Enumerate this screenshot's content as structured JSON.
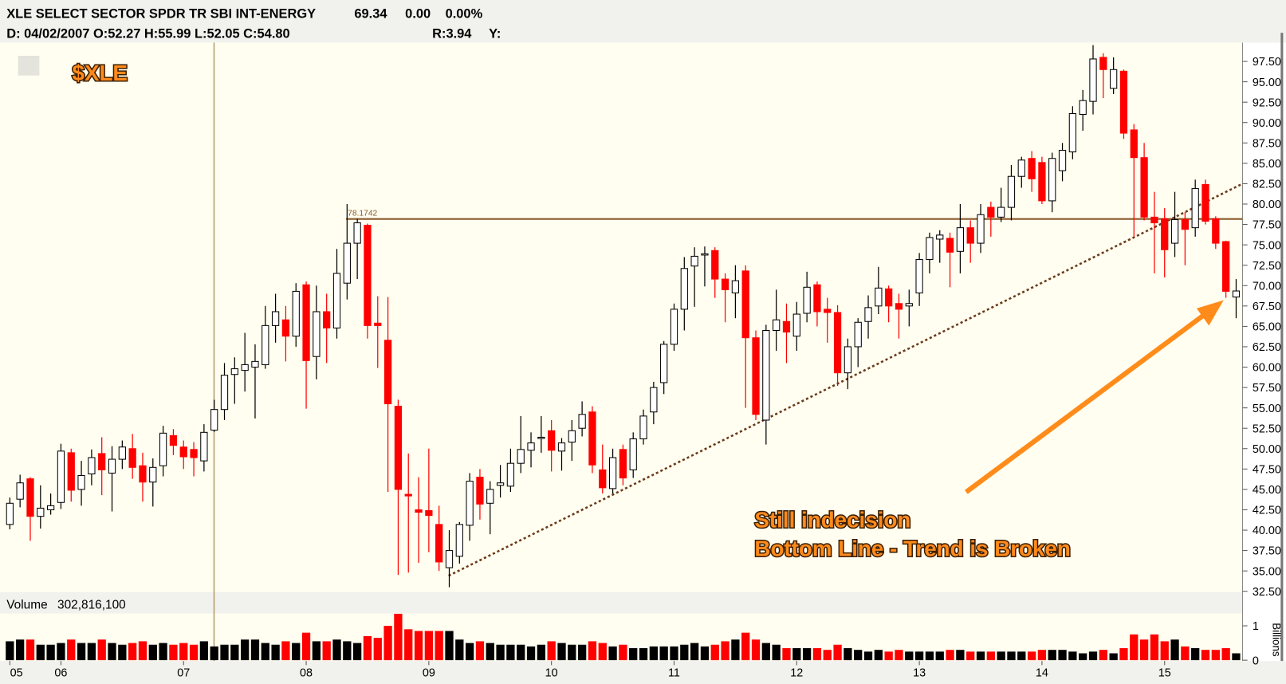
{
  "header": {
    "name": "XLE SELECT SECTOR SPDR TR SBI INT-ENERGY",
    "last": "69.34",
    "change": "0.00",
    "change_pct": "0.00%",
    "readout": "D: 04/02/2007 O:52.27 H:55.99 L:52.05 C:54.80",
    "range": "R:3.94",
    "y": "Y:"
  },
  "annotations": [
    "Still indecision",
    "Bottom Line - Trend is Broken"
  ],
  "chart_data": [
    {
      "type": "candlestick",
      "title": "$XLE",
      "up_color": "#ffffff",
      "down_color": "#ff0000",
      "categories": [
        "05",
        null,
        null,
        null,
        null,
        "06",
        null,
        null,
        null,
        null,
        null,
        null,
        null,
        null,
        null,
        null,
        null,
        "07",
        null,
        null,
        null,
        null,
        null,
        null,
        null,
        null,
        null,
        null,
        null,
        "08",
        null,
        null,
        null,
        null,
        null,
        null,
        null,
        null,
        null,
        null,
        null,
        "09",
        null,
        null,
        null,
        null,
        null,
        null,
        null,
        null,
        null,
        null,
        null,
        "10",
        null,
        null,
        null,
        null,
        null,
        null,
        null,
        null,
        null,
        null,
        null,
        "11",
        null,
        null,
        null,
        null,
        null,
        null,
        null,
        null,
        null,
        null,
        null,
        "12",
        null,
        null,
        null,
        null,
        null,
        null,
        null,
        null,
        null,
        null,
        null,
        "13",
        null,
        null,
        null,
        null,
        null,
        null,
        null,
        null,
        null,
        null,
        null,
        "14",
        null,
        null,
        null,
        null,
        null,
        null,
        null,
        null,
        null,
        null,
        null,
        "15",
        null,
        null,
        null,
        null,
        null,
        null,
        null
      ],
      "open": [
        40.7,
        43.8,
        46.3,
        41.7,
        42.5,
        43.4,
        49.5,
        45.0,
        46.9,
        49.4,
        47.0,
        48.7,
        50.0,
        47.9,
        45.9,
        47.9,
        51.6,
        50.2,
        49.9,
        48.5,
        52.27,
        54.8,
        59.1,
        59.6,
        60.0,
        60.3,
        65.1,
        65.8,
        63.8,
        70.1,
        61.3,
        66.8,
        64.8,
        70.3,
        75.2,
        77.4,
        65.4,
        63.3,
        55.2,
        44.4,
        42.5,
        42.4,
        40.7,
        35.4,
        36.8,
        40.6,
        46.5,
        43.3,
        45.5,
        45.4,
        48.2,
        49.8,
        51.3,
        52.2,
        49.7,
        50.8,
        52.5,
        54.5,
        47.4,
        45.1,
        49.9,
        47.4,
        51.2,
        54.5,
        58.1,
        62.8,
        67.1,
        72.4,
        73.8,
        74.3,
        70.8,
        69.1,
        71.8,
        63.6,
        53.5,
        64.5,
        65.6,
        63.8,
        66.6,
        70.1,
        67.1,
        66.7,
        59.3,
        62.5,
        65.6,
        67.5,
        69.6,
        67.8,
        67.5,
        69.1,
        73.2,
        75.7,
        75.8,
        74.2,
        77.1,
        75.2,
        79.6,
        78.4,
        79.6,
        83.4,
        85.6,
        85.1,
        80.4,
        84.1,
        86.4,
        91.0,
        92.6,
        98.0,
        94.2,
        96.3,
        89.1,
        85.7,
        78.4,
        78.2,
        75.2,
        78.1,
        77.1,
        82.4,
        78.2,
        75.4,
        68.6
      ],
      "high": [
        44.0,
        46.8,
        46.5,
        45.5,
        44.5,
        50.6,
        50.0,
        48.5,
        49.9,
        51.4,
        50.3,
        51.0,
        51.8,
        49.5,
        48.8,
        52.8,
        52.4,
        51.0,
        50.8,
        53.0,
        55.99,
        60.5,
        61.2,
        64.2,
        62.8,
        67.5,
        69.0,
        67.5,
        70.3,
        70.5,
        70.0,
        69.0,
        74.5,
        80.0,
        78.2,
        77.6,
        68.7,
        68.6,
        56.0,
        49.4,
        46.5,
        50.0,
        43.0,
        40.0,
        41.0,
        47.0,
        47.5,
        46.0,
        48.0,
        50.0,
        54.0,
        52.0,
        54.0,
        53.5,
        51.3,
        53.5,
        55.8,
        55.2,
        50.5,
        50.0,
        50.5,
        52.0,
        54.8,
        58.2,
        63.2,
        67.8,
        73.5,
        74.7,
        74.8,
        74.7,
        71.5,
        72.5,
        72.5,
        64.5,
        65.2,
        69.5,
        67.8,
        68.0,
        71.7,
        70.5,
        68.5,
        67.6,
        63.5,
        66.0,
        68.8,
        72.3,
        70.0,
        69.0,
        69.5,
        74.0,
        76.5,
        76.8,
        76.5,
        80.0,
        78.0,
        80.0,
        80.3,
        82.0,
        84.8,
        85.8,
        86.5,
        85.8,
        86.3,
        87.5,
        92.0,
        94.0,
        99.5,
        98.5,
        98.0,
        96.5,
        89.8,
        87.5,
        81.5,
        79.5,
        81.5,
        79.0,
        83.0,
        83.0,
        78.5,
        75.5,
        70.8
      ],
      "low": [
        40.1,
        42.8,
        38.7,
        40.2,
        41.9,
        42.6,
        43.5,
        43.0,
        45.5,
        44.3,
        42.3,
        47.5,
        46.3,
        43.5,
        42.9,
        46.6,
        49.2,
        47.5,
        46.6,
        47.2,
        52.05,
        53.5,
        55.5,
        57.0,
        53.7,
        59.8,
        63.0,
        60.7,
        62.5,
        54.9,
        58.5,
        60.5,
        63.5,
        68.3,
        70.8,
        63.5,
        59.9,
        44.7,
        34.5,
        34.8,
        36.0,
        37.3,
        35.0,
        33.0,
        35.9,
        38.7,
        41.3,
        39.5,
        44.0,
        44.7,
        47.0,
        47.7,
        49.5,
        47.2,
        47.3,
        48.5,
        51.5,
        47.0,
        44.5,
        44.5,
        45.5,
        46.4,
        50.5,
        53.0,
        56.7,
        62.0,
        64.5,
        67.4,
        69.9,
        68.5,
        65.5,
        66.0,
        55.0,
        53.5,
        50.5,
        62.0,
        60.5,
        62.0,
        65.5,
        65.0,
        63.0,
        57.7,
        57.3,
        60.0,
        63.5,
        66.5,
        65.5,
        63.5,
        65.0,
        67.5,
        71.5,
        72.8,
        69.8,
        71.5,
        72.8,
        74.0,
        76.0,
        77.8,
        78.0,
        82.0,
        81.5,
        80.0,
        79.0,
        82.8,
        85.5,
        89.0,
        91.0,
        93.0,
        93.5,
        88.0,
        76.0,
        78.0,
        71.5,
        71.0,
        73.5,
        72.5,
        76.0,
        77.5,
        74.5,
        68.5,
        66.0
      ],
      "close": [
        43.3,
        45.8,
        41.7,
        42.7,
        43.0,
        49.7,
        44.9,
        46.7,
        48.9,
        47.4,
        48.7,
        50.2,
        47.7,
        45.9,
        47.7,
        51.9,
        50.4,
        49.0,
        48.9,
        52.0,
        54.8,
        59.0,
        59.8,
        60.3,
        60.7,
        65.1,
        66.8,
        63.8,
        69.3,
        60.8,
        66.8,
        64.8,
        71.5,
        75.2,
        77.7,
        65.1,
        65.1,
        55.5,
        45.0,
        44.2,
        42.2,
        41.8,
        36.1,
        37.5,
        40.7,
        46.0,
        43.2,
        45.0,
        45.8,
        48.2,
        49.9,
        50.7,
        51.4,
        49.8,
        50.7,
        52.2,
        54.2,
        48.0,
        45.2,
        48.9,
        46.4,
        51.2,
        54.0,
        57.5,
        62.8,
        67.1,
        72.1,
        73.6,
        73.9,
        70.8,
        69.5,
        70.6,
        63.6,
        54.2,
        64.5,
        65.8,
        64.3,
        66.5,
        69.8,
        66.8,
        66.7,
        59.3,
        62.5,
        65.5,
        67.3,
        69.7,
        67.5,
        67.1,
        67.8,
        73.2,
        75.9,
        76.2,
        74.1,
        77.1,
        75.2,
        78.7,
        78.4,
        79.6,
        83.4,
        85.4,
        83.1,
        80.4,
        85.6,
        86.6,
        91.1,
        92.7,
        97.8,
        96.5,
        96.5,
        88.7,
        85.7,
        78.4,
        77.7,
        74.4,
        78.1,
        76.9,
        81.9,
        77.9,
        75.2,
        69.3,
        69.34
      ],
      "reference_line": 78.1742,
      "ylim": [
        32.4,
        99.8
      ],
      "yticks": [
        {
          "value": 32.5,
          "label": "32.50"
        },
        {
          "value": 35,
          "label": "35.00"
        },
        {
          "value": 37.5,
          "label": "37.50"
        },
        {
          "value": 40,
          "label": "40.00"
        },
        {
          "value": 42.5,
          "label": "42.50"
        },
        {
          "value": 45,
          "label": "45.00"
        },
        {
          "value": 47.5,
          "label": "47.50"
        },
        {
          "value": 50,
          "label": "50.00"
        },
        {
          "value": 52.5,
          "label": "52.50"
        },
        {
          "value": 55,
          "label": "55.00"
        },
        {
          "value": 57.5,
          "label": "57.50"
        },
        {
          "value": 60,
          "label": "60.00"
        },
        {
          "value": 62.5,
          "label": "62.50"
        },
        {
          "value": 65,
          "label": "65.00"
        },
        {
          "value": 67.5,
          "label": "67.50"
        },
        {
          "value": 70,
          "label": "70.00"
        },
        {
          "value": 72.5,
          "label": "72.50"
        },
        {
          "value": 75,
          "label": "75.00"
        },
        {
          "value": 77.5,
          "label": "77.50"
        },
        {
          "value": 80,
          "label": "80.00"
        },
        {
          "value": 82.5,
          "label": "82.50"
        },
        {
          "value": 85,
          "label": "85.00"
        },
        {
          "value": 87.5,
          "label": "87.50"
        },
        {
          "value": 90,
          "label": "90.00"
        },
        {
          "value": 92.5,
          "label": "92.50"
        },
        {
          "value": 95,
          "label": "95.00"
        },
        {
          "value": 97.5,
          "label": "97.50"
        }
      ],
      "grid": false
    },
    {
      "type": "bar",
      "title": "Volume",
      "readout": "302,816,100",
      "y_label": "Billions",
      "up_color": "#000000",
      "down_color": "#ff0000",
      "values": [
        0.55,
        0.6,
        0.6,
        0.45,
        0.45,
        0.5,
        0.6,
        0.5,
        0.5,
        0.6,
        0.5,
        0.45,
        0.5,
        0.55,
        0.45,
        0.5,
        0.45,
        0.5,
        0.45,
        0.55,
        0.4,
        0.45,
        0.45,
        0.6,
        0.6,
        0.5,
        0.45,
        0.55,
        0.5,
        0.8,
        0.55,
        0.55,
        0.6,
        0.55,
        0.5,
        0.7,
        0.65,
        1.0,
        1.35,
        0.9,
        0.85,
        0.85,
        0.85,
        0.85,
        0.6,
        0.5,
        0.55,
        0.5,
        0.45,
        0.45,
        0.45,
        0.4,
        0.45,
        0.55,
        0.5,
        0.45,
        0.45,
        0.55,
        0.5,
        0.4,
        0.45,
        0.35,
        0.35,
        0.4,
        0.4,
        0.4,
        0.45,
        0.5,
        0.4,
        0.45,
        0.55,
        0.6,
        0.8,
        0.6,
        0.5,
        0.45,
        0.35,
        0.35,
        0.35,
        0.35,
        0.3,
        0.45,
        0.35,
        0.3,
        0.25,
        0.3,
        0.25,
        0.3,
        0.25,
        0.25,
        0.25,
        0.25,
        0.3,
        0.3,
        0.25,
        0.25,
        0.25,
        0.25,
        0.25,
        0.25,
        0.25,
        0.3,
        0.3,
        0.3,
        0.25,
        0.2,
        0.25,
        0.3,
        0.2,
        0.35,
        0.75,
        0.6,
        0.75,
        0.55,
        0.6,
        0.4,
        0.35,
        0.3,
        0.3,
        0.35,
        0.2
      ],
      "ylim": [
        0,
        1.36
      ],
      "yticks": [
        0,
        1
      ],
      "grid": false
    }
  ]
}
